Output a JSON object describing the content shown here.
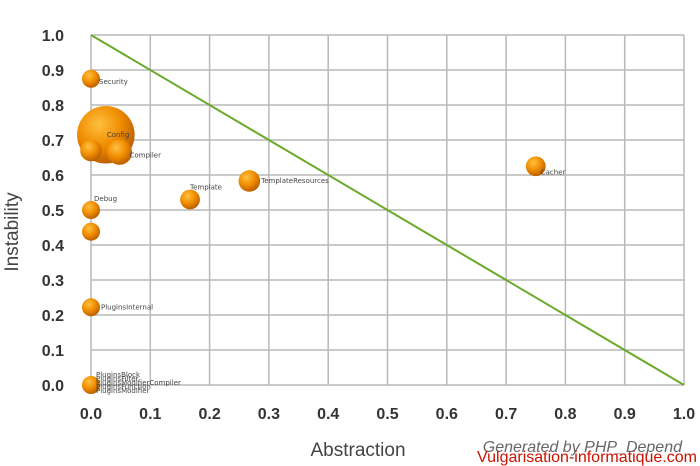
{
  "chart_data": {
    "type": "scatter",
    "title": "",
    "xlabel": "Abstraction",
    "ylabel": "Instability",
    "xlim": [
      0,
      1
    ],
    "ylim": [
      0,
      1
    ],
    "xticks": [
      "0.0",
      "0.1",
      "0.2",
      "0.3",
      "0.4",
      "0.5",
      "0.6",
      "0.7",
      "0.8",
      "0.9",
      "1.0"
    ],
    "yticks": [
      "0.0",
      "0.1",
      "0.2",
      "0.3",
      "0.4",
      "0.5",
      "0.6",
      "0.7",
      "0.8",
      "0.9",
      "1.0"
    ],
    "grid": true,
    "main_sequence": {
      "from": [
        0,
        1
      ],
      "to": [
        1,
        0
      ],
      "color": "#6aaa2a"
    },
    "point_color": "#f08c00",
    "points": [
      {
        "label": "Security",
        "x": 0.0,
        "y": 0.875,
        "size": 1.0
      },
      {
        "label": "Config",
        "x": 0.025,
        "y": 0.715,
        "size": 3.2
      },
      {
        "label": "",
        "x": 0.0,
        "y": 0.67,
        "size": 1.2
      },
      {
        "label": "Compiler",
        "x": 0.048,
        "y": 0.665,
        "size": 1.4
      },
      {
        "label": "Template",
        "x": 0.167,
        "y": 0.53,
        "size": 1.1
      },
      {
        "label": "TemplateResources",
        "x": 0.267,
        "y": 0.583,
        "size": 1.2
      },
      {
        "label": "Cacher",
        "x": 0.75,
        "y": 0.625,
        "size": 1.1
      },
      {
        "label": "Debug",
        "x": 0.0,
        "y": 0.5,
        "size": 1.0
      },
      {
        "label": "",
        "x": 0.0,
        "y": 0.438,
        "size": 1.0
      },
      {
        "label": "PluginsInternal",
        "x": 0.0,
        "y": 0.222,
        "size": 1.0
      },
      {
        "label": "PluginsBlock",
        "x": 0.0,
        "y": 0.0,
        "size": 1.0
      },
      {
        "label": "PluginsFilter",
        "x": 0.0,
        "y": 0.0,
        "size": 0.0
      },
      {
        "label": "PluginsModifierCompiler",
        "x": 0.0,
        "y": 0.0,
        "size": 0.0
      },
      {
        "label": "PluginsFunction",
        "x": 0.0,
        "y": 0.0,
        "size": 0.0
      },
      {
        "label": "PluginsModifier",
        "x": 0.0,
        "y": 0.0,
        "size": 0.0
      }
    ],
    "credit": "Generated by PHP_Depend",
    "watermark": "Vulgarisation-informatique.com"
  }
}
